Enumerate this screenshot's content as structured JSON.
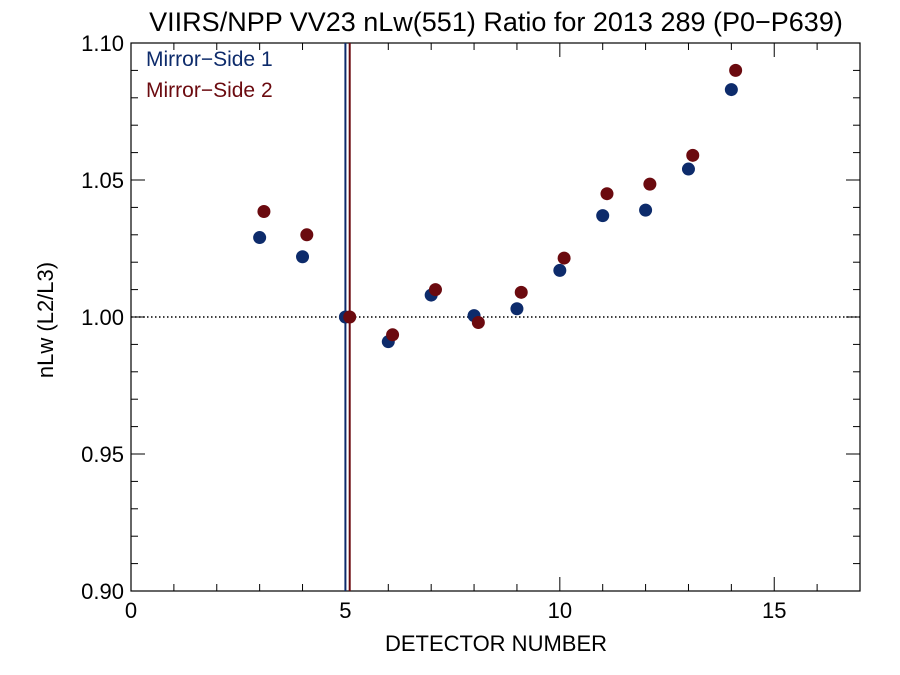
{
  "chart_data": {
    "type": "scatter",
    "title": "VIIRS/NPP VV23 nLw(551) Ratio for 2013 289 (P0−P639)",
    "xlabel": "DETECTOR NUMBER",
    "ylabel": "nLw (L2/L3)",
    "xlim": [
      0,
      17
    ],
    "ylim": [
      0.9,
      1.1
    ],
    "x_ticks": [
      0,
      5,
      10,
      15
    ],
    "x_tick_labels": [
      "0",
      "5",
      "10",
      "15"
    ],
    "x_minor_step": 1,
    "y_ticks": [
      0.9,
      0.95,
      1.0,
      1.05,
      1.1
    ],
    "y_tick_labels": [
      "0.90",
      "0.95",
      "1.00",
      "1.05",
      "1.10"
    ],
    "y_minor_step": 0.01,
    "reference_line": {
      "y": 1.0,
      "style": "dotted"
    },
    "vertical_markers": [
      {
        "x": 5.0,
        "color": "#0d2b6b"
      },
      {
        "x": 5.1,
        "color": "#6b0a0f"
      }
    ],
    "legend_position": "top-left",
    "series": [
      {
        "name": "Mirror−Side 1",
        "color": "#0d2b6b",
        "x": [
          3,
          4,
          5,
          6,
          7,
          8,
          9,
          10,
          11,
          12,
          13,
          14
        ],
        "y": [
          1.029,
          1.022,
          1.0,
          0.991,
          1.008,
          1.0005,
          1.003,
          1.017,
          1.037,
          1.039,
          1.054,
          1.083
        ]
      },
      {
        "name": "Mirror−Side 2",
        "color": "#6b0a0f",
        "x": [
          3.1,
          4.1,
          5.1,
          6.1,
          7.1,
          8.1,
          9.1,
          10.1,
          11.1,
          12.1,
          13.1,
          14.1
        ],
        "y": [
          1.0385,
          1.03,
          1.0,
          0.9935,
          1.01,
          0.998,
          1.009,
          1.0215,
          1.045,
          1.0485,
          1.059,
          1.09
        ]
      }
    ]
  }
}
